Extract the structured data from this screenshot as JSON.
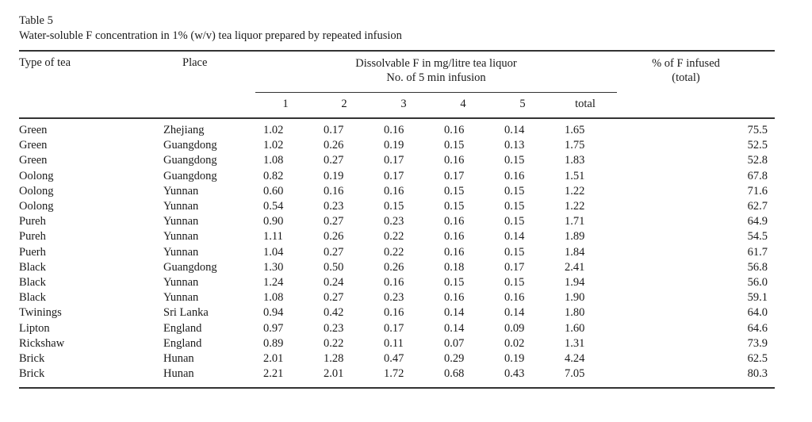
{
  "caption": {
    "label": "Table 5",
    "text": "Water-soluble F concentration in 1% (w/v) tea liquor prepared by repeated infusion"
  },
  "header": {
    "type": "Type of tea",
    "place": "Place",
    "dissolvable_line1": "Dissolvable F in mg/litre tea liquor",
    "dissolvable_line2": "No. of 5 min infusion",
    "pct_line1": "% of F infused",
    "pct_line2": "(total)",
    "infusions": [
      "1",
      "2",
      "3",
      "4",
      "5",
      "total"
    ]
  },
  "rows": [
    {
      "type": "Green",
      "place": "Zhejiang",
      "v1": "1.02",
      "v2": "0.17",
      "v3": "0.16",
      "v4": "0.16",
      "v5": "0.14",
      "total": "1.65",
      "pct": "75.5"
    },
    {
      "type": "Green",
      "place": "Guangdong",
      "v1": "1.02",
      "v2": "0.26",
      "v3": "0.19",
      "v4": "0.15",
      "v5": "0.13",
      "total": "1.75",
      "pct": "52.5"
    },
    {
      "type": "Green",
      "place": "Guangdong",
      "v1": "1.08",
      "v2": "0.27",
      "v3": "0.17",
      "v4": "0.16",
      "v5": "0.15",
      "total": "1.83",
      "pct": "52.8"
    },
    {
      "type": "Oolong",
      "place": "Guangdong",
      "v1": "0.82",
      "v2": "0.19",
      "v3": "0.17",
      "v4": "0.17",
      "v5": "0.16",
      "total": "1.51",
      "pct": "67.8"
    },
    {
      "type": "Oolong",
      "place": "Yunnan",
      "v1": "0.60",
      "v2": "0.16",
      "v3": "0.16",
      "v4": "0.15",
      "v5": "0.15",
      "total": "1.22",
      "pct": "71.6"
    },
    {
      "type": "Oolong",
      "place": "Yunnan",
      "v1": "0.54",
      "v2": "0.23",
      "v3": "0.15",
      "v4": "0.15",
      "v5": "0.15",
      "total": "1.22",
      "pct": "62.7"
    },
    {
      "type": "Pureh",
      "place": "Yunnan",
      "v1": "0.90",
      "v2": "0.27",
      "v3": "0.23",
      "v4": "0.16",
      "v5": "0.15",
      "total": "1.71",
      "pct": "64.9"
    },
    {
      "type": "Pureh",
      "place": "Yunnan",
      "v1": "1.11",
      "v2": "0.26",
      "v3": "0.22",
      "v4": "0.16",
      "v5": "0.14",
      "total": "1.89",
      "pct": "54.5"
    },
    {
      "type": "Puerh",
      "place": "Yunnan",
      "v1": "1.04",
      "v2": "0.27",
      "v3": "0.22",
      "v4": "0.16",
      "v5": "0.15",
      "total": "1.84",
      "pct": "61.7"
    },
    {
      "type": "Black",
      "place": "Guangdong",
      "v1": "1.30",
      "v2": "0.50",
      "v3": "0.26",
      "v4": "0.18",
      "v5": "0.17",
      "total": "2.41",
      "pct": "56.8"
    },
    {
      "type": "Black",
      "place": "Yunnan",
      "v1": "1.24",
      "v2": "0.24",
      "v3": "0.16",
      "v4": "0.15",
      "v5": "0.15",
      "total": "1.94",
      "pct": "56.0"
    },
    {
      "type": "Black",
      "place": "Yunnan",
      "v1": "1.08",
      "v2": "0.27",
      "v3": "0.23",
      "v4": "0.16",
      "v5": "0.16",
      "total": "1.90",
      "pct": "59.1"
    },
    {
      "type": "Twinings",
      "place": "Sri Lanka",
      "v1": "0.94",
      "v2": "0.42",
      "v3": "0.16",
      "v4": "0.14",
      "v5": "0.14",
      "total": "1.80",
      "pct": "64.0"
    },
    {
      "type": "Lipton",
      "place": "England",
      "v1": "0.97",
      "v2": "0.23",
      "v3": "0.17",
      "v4": "0.14",
      "v5": "0.09",
      "total": "1.60",
      "pct": "64.6"
    },
    {
      "type": "Rickshaw",
      "place": "England",
      "v1": "0.89",
      "v2": "0.22",
      "v3": "0.11",
      "v4": "0.07",
      "v5": "0.02",
      "total": "1.31",
      "pct": "73.9"
    },
    {
      "type": "Brick",
      "place": "Hunan",
      "v1": "2.01",
      "v2": "1.28",
      "v3": "0.47",
      "v4": "0.29",
      "v5": "0.19",
      "total": "4.24",
      "pct": "62.5"
    },
    {
      "type": "Brick",
      "place": "Hunan",
      "v1": "2.21",
      "v2": "2.01",
      "v3": "1.72",
      "v4": "0.68",
      "v5": "0.43",
      "total": "7.05",
      "pct": "80.3"
    }
  ]
}
